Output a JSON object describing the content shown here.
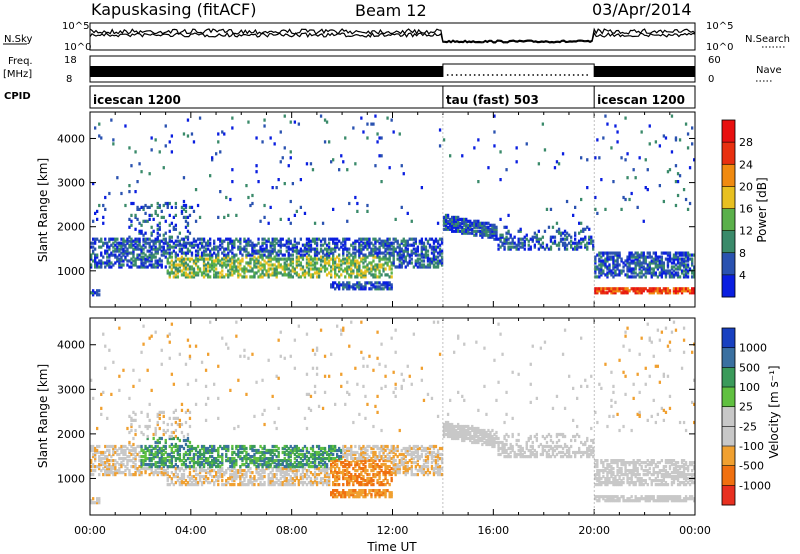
{
  "header": {
    "station": "Kapuskasing (fitACF)",
    "beam": "Beam 12",
    "date": "03/Apr/2014"
  },
  "params": {
    "nsky_label": "N.Sky",
    "nsky_ticks": [
      "10^5",
      "10^0"
    ],
    "nsearch_label": "N.Search",
    "nsearch_ticks": [
      "10^5",
      "10^0"
    ],
    "freq_label": "Freq.",
    "freq_unit": "[MHz]",
    "freq_ticks": [
      "18",
      "8"
    ],
    "nave_label": "Nave",
    "nave_ticks": [
      "60",
      "0"
    ],
    "cpid_label": "CPID"
  },
  "cpid_segments": [
    {
      "start": 0,
      "end": 14,
      "name": "icescan 1200"
    },
    {
      "start": 14,
      "end": 20,
      "name": "tau (fast) 503"
    },
    {
      "start": 20,
      "end": 24,
      "name": "icescan 1200"
    }
  ],
  "chart_data": [
    {
      "type": "heatmap",
      "title": "",
      "xlabel": "Time UT",
      "ylabel": "Slant Range [km]",
      "xlim": [
        0,
        24
      ],
      "ylim": [
        180,
        4600
      ],
      "xticks": [
        "00:00",
        "04:00",
        "08:00",
        "12:00",
        "16:00",
        "20:00",
        "00:00"
      ],
      "yticks": [
        "1000",
        "2000",
        "3000",
        "4000"
      ],
      "colorbar": {
        "label": "Power [dB]",
        "ticks": [
          "4",
          "8",
          "12",
          "16",
          "20",
          "24",
          "28"
        ],
        "colors": [
          "#0a1ee0",
          "#2a52b0",
          "#3a8a6a",
          "#5ab04a",
          "#e8c020",
          "#f08a10",
          "#e83010",
          "#e81010"
        ]
      },
      "regions": [
        {
          "t": [
            0,
            14
          ],
          "range": [
            1050,
            1700
          ],
          "level": "2-12 dB"
        },
        {
          "t": [
            3,
            12
          ],
          "range": [
            800,
            1300
          ],
          "level": "12-20 dB"
        },
        {
          "t": [
            9.5,
            12
          ],
          "range": [
            550,
            700
          ],
          "level": "8-12 dB"
        },
        {
          "t": [
            14,
            16
          ],
          "range": [
            1850,
            2250
          ],
          "level": "4-12 dB"
        },
        {
          "t": [
            16,
            20
          ],
          "range": [
            1500,
            2000
          ],
          "level": "2-8 dB"
        },
        {
          "t": [
            20,
            24
          ],
          "range": [
            800,
            1400
          ],
          "level": "2-12 dB"
        },
        {
          "t": [
            20,
            24
          ],
          "range": [
            450,
            550
          ],
          "level": "16-28 dB"
        }
      ]
    },
    {
      "type": "heatmap",
      "title": "",
      "xlabel": "Time UT",
      "ylabel": "Slant Range [km]",
      "xlim": [
        0,
        24
      ],
      "ylim": [
        180,
        4600
      ],
      "xticks": [
        "00:00",
        "04:00",
        "08:00",
        "12:00",
        "16:00",
        "20:00",
        "00:00"
      ],
      "yticks": [
        "1000",
        "2000",
        "3000",
        "4000"
      ],
      "colorbar": {
        "label": "Velocity [m s⁻¹]",
        "ticks": [
          "1000",
          "500",
          "100",
          "25",
          "-25",
          "-100",
          "-500",
          "-1000"
        ],
        "colors": [
          "#1840c0",
          "#3a70a0",
          "#3a9a5a",
          "#60c040",
          "#c8c8c8",
          "#c8c8c8",
          "#f0a030",
          "#f07010",
          "#e83020"
        ]
      },
      "regions": [
        {
          "t": [
            0,
            14
          ],
          "range": [
            900,
            1700
          ],
          "level": "-25 to 25"
        },
        {
          "t": [
            2,
            10
          ],
          "range": [
            1200,
            1900
          ],
          "level": "25 to 500"
        },
        {
          "t": [
            9.5,
            12
          ],
          "range": [
            550,
            1400
          ],
          "level": "-100 to -500"
        },
        {
          "t": [
            14,
            20
          ],
          "range": [
            1500,
            2300
          ],
          "level": "-25 to 25"
        },
        {
          "t": [
            20,
            24
          ],
          "range": [
            500,
            1400
          ],
          "level": "-25 to 25"
        }
      ]
    }
  ]
}
